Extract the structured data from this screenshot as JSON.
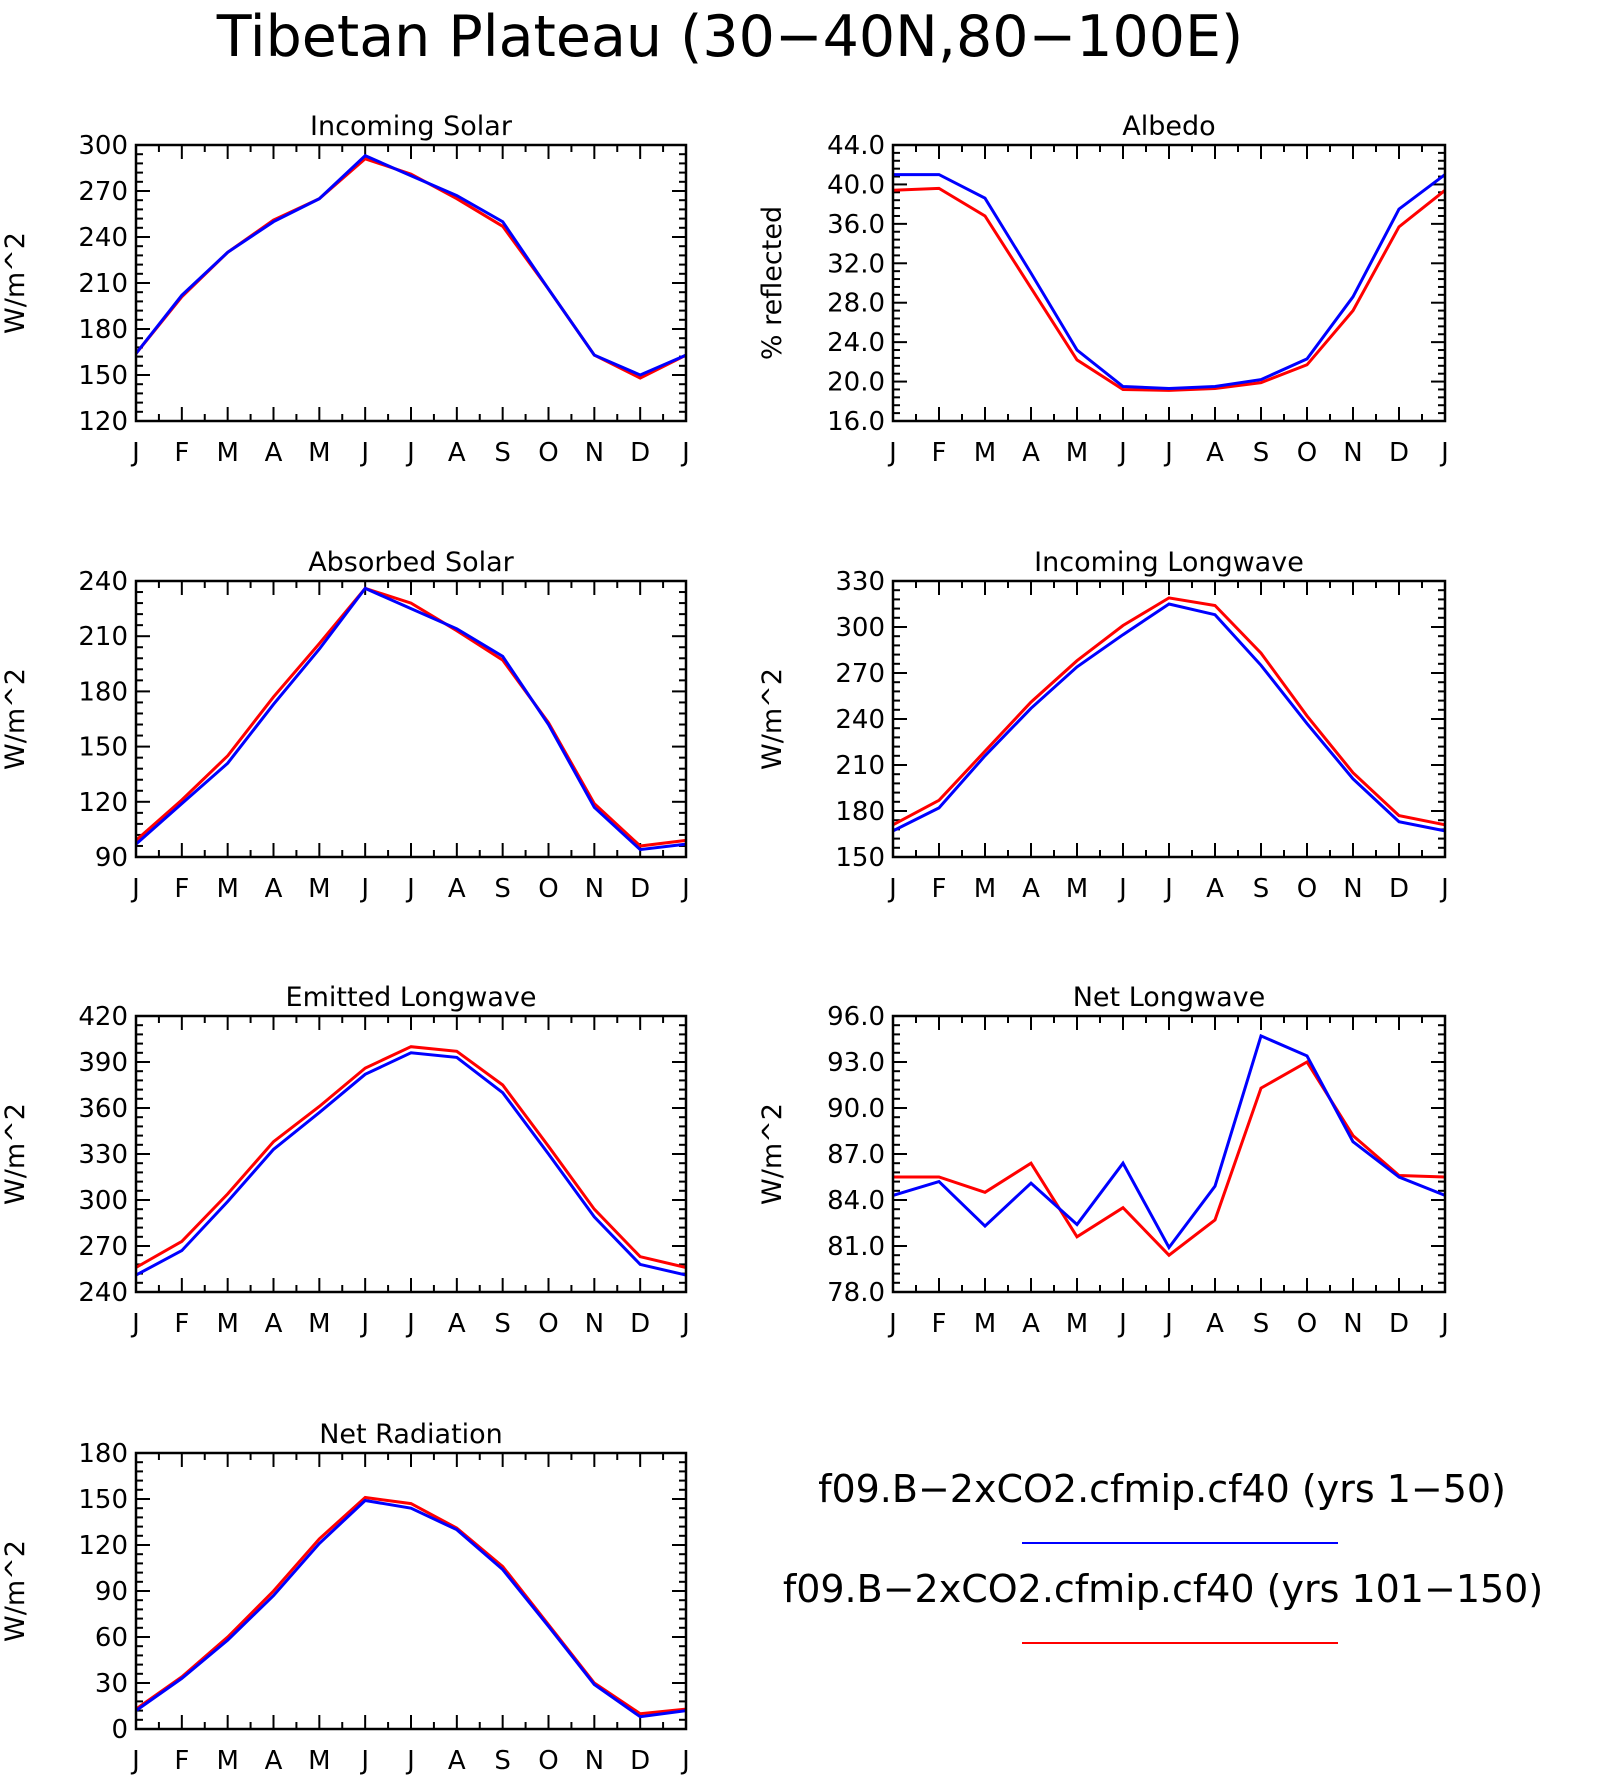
{
  "title": "Tibetan Plateau (30−40N,80−100E)",
  "legend": {
    "entries": [
      {
        "label": "f09.B−2xCO2.cfmip.cf40 (yrs 1−50)",
        "color": "#0000ff"
      },
      {
        "label": "f09.B−2xCO2.cfmip.cf40 (yrs 101−150)",
        "color": "#ff0000"
      }
    ]
  },
  "chart_data": [
    {
      "type": "line",
      "title": "Incoming Solar",
      "ylabel": "W/m^2",
      "ylim": [
        120,
        300
      ],
      "yticks": [
        120,
        150,
        180,
        210,
        240,
        270,
        300
      ],
      "ytick_labels": [
        "120",
        "150",
        "180",
        "210",
        "240",
        "270",
        "300"
      ],
      "categories": [
        "J",
        "F",
        "M",
        "A",
        "M",
        "J",
        "J",
        "A",
        "S",
        "O",
        "N",
        "D",
        "J"
      ],
      "series": [
        {
          "name": "f09.B−2xCO2.cfmip.cf40 (yrs 1−50)",
          "color": "#0000ff",
          "values": [
            164,
            202,
            230,
            250,
            265,
            293,
            280,
            267,
            250,
            206,
            163,
            150,
            163
          ]
        },
        {
          "name": "f09.B−2xCO2.cfmip.cf40 (yrs 101−150)",
          "color": "#ff0000",
          "values": [
            164,
            201,
            230,
            251,
            265,
            291,
            281,
            265,
            247,
            206,
            163,
            148,
            163
          ]
        }
      ]
    },
    {
      "type": "line",
      "title": "Albedo",
      "ylabel": "% reflected",
      "ylim": [
        16,
        44
      ],
      "yticks": [
        16,
        20,
        24,
        28,
        32,
        36,
        40,
        44
      ],
      "ytick_labels": [
        "16.0",
        "20.0",
        "24.0",
        "28.0",
        "32.0",
        "36.0",
        "40.0",
        "44.0"
      ],
      "categories": [
        "J",
        "F",
        "M",
        "A",
        "M",
        "J",
        "J",
        "A",
        "S",
        "O",
        "N",
        "D",
        "J"
      ],
      "series": [
        {
          "name": "f09.B−2xCO2.cfmip.cf40 (yrs 1−50)",
          "color": "#0000ff",
          "values": [
            41.0,
            41.0,
            38.6,
            31.0,
            23.2,
            19.5,
            19.3,
            19.5,
            20.2,
            22.3,
            28.6,
            37.5,
            41.0
          ]
        },
        {
          "name": "f09.B−2xCO2.cfmip.cf40 (yrs 101−150)",
          "color": "#ff0000",
          "values": [
            39.4,
            39.6,
            36.8,
            29.5,
            22.2,
            19.2,
            19.1,
            19.3,
            19.9,
            21.7,
            27.2,
            35.7,
            39.4
          ]
        }
      ]
    },
    {
      "type": "line",
      "title": "Absorbed Solar",
      "ylabel": "W/m^2",
      "ylim": [
        90,
        240
      ],
      "yticks": [
        90,
        120,
        150,
        180,
        210,
        240
      ],
      "ytick_labels": [
        "90",
        "120",
        "150",
        "180",
        "210",
        "240"
      ],
      "categories": [
        "J",
        "F",
        "M",
        "A",
        "M",
        "J",
        "J",
        "A",
        "S",
        "O",
        "N",
        "D",
        "J"
      ],
      "series": [
        {
          "name": "f09.B−2xCO2.cfmip.cf40 (yrs 1−50)",
          "color": "#0000ff",
          "values": [
            97,
            119,
            141,
            173,
            203,
            236,
            225,
            214,
            199,
            162,
            117,
            94,
            97
          ]
        },
        {
          "name": "f09.B−2xCO2.cfmip.cf40 (yrs 101−150)",
          "color": "#ff0000",
          "values": [
            99,
            121,
            145,
            177,
            206,
            236,
            228,
            213,
            197,
            163,
            119,
            96,
            99
          ]
        }
      ]
    },
    {
      "type": "line",
      "title": "Incoming Longwave",
      "ylabel": "W/m^2",
      "ylim": [
        150,
        330
      ],
      "yticks": [
        150,
        180,
        210,
        240,
        270,
        300,
        330
      ],
      "ytick_labels": [
        "150",
        "180",
        "210",
        "240",
        "270",
        "300",
        "330"
      ],
      "categories": [
        "J",
        "F",
        "M",
        "A",
        "M",
        "J",
        "J",
        "A",
        "S",
        "O",
        "N",
        "D",
        "J"
      ],
      "series": [
        {
          "name": "f09.B−2xCO2.cfmip.cf40 (yrs 1−50)",
          "color": "#0000ff",
          "values": [
            167,
            182,
            216,
            247,
            274,
            295,
            315,
            308,
            275,
            237,
            201,
            173,
            167
          ]
        },
        {
          "name": "f09.B−2xCO2.cfmip.cf40 (yrs 101−150)",
          "color": "#ff0000",
          "values": [
            171,
            187,
            219,
            251,
            278,
            301,
            319,
            314,
            283,
            242,
            205,
            177,
            171
          ]
        }
      ]
    },
    {
      "type": "line",
      "title": "Emitted Longwave",
      "ylabel": "W/m^2",
      "ylim": [
        240,
        420
      ],
      "yticks": [
        240,
        270,
        300,
        330,
        360,
        390,
        420
      ],
      "ytick_labels": [
        "240",
        "270",
        "300",
        "330",
        "360",
        "390",
        "420"
      ],
      "categories": [
        "J",
        "F",
        "M",
        "A",
        "M",
        "J",
        "J",
        "A",
        "S",
        "O",
        "N",
        "D",
        "J"
      ],
      "series": [
        {
          "name": "f09.B−2xCO2.cfmip.cf40 (yrs 1−50)",
          "color": "#0000ff",
          "values": [
            251,
            267,
            299,
            333,
            357,
            382,
            396,
            393,
            370,
            330,
            289,
            258,
            251
          ]
        },
        {
          "name": "f09.B−2xCO2.cfmip.cf40 (yrs 101−150)",
          "color": "#ff0000",
          "values": [
            256,
            273,
            304,
            338,
            361,
            386,
            400,
            397,
            375,
            335,
            294,
            263,
            256
          ]
        }
      ]
    },
    {
      "type": "line",
      "title": "Net Longwave",
      "ylabel": "W/m^2",
      "ylim": [
        78,
        96
      ],
      "yticks": [
        78,
        81,
        84,
        87,
        90,
        93,
        96
      ],
      "ytick_labels": [
        "78.0",
        "81.0",
        "84.0",
        "87.0",
        "90.0",
        "93.0",
        "96.0"
      ],
      "categories": [
        "J",
        "F",
        "M",
        "A",
        "M",
        "J",
        "J",
        "A",
        "S",
        "O",
        "N",
        "D",
        "J"
      ],
      "series": [
        {
          "name": "f09.B−2xCO2.cfmip.cf40 (yrs 1−50)",
          "color": "#0000ff",
          "values": [
            84.3,
            85.2,
            82.3,
            85.1,
            82.4,
            86.4,
            80.9,
            84.9,
            94.7,
            93.4,
            87.8,
            85.5,
            84.3
          ]
        },
        {
          "name": "f09.B−2xCO2.cfmip.cf40 (yrs 101−150)",
          "color": "#ff0000",
          "values": [
            85.5,
            85.5,
            84.5,
            86.4,
            81.6,
            83.5,
            80.4,
            82.7,
            91.3,
            93.0,
            88.2,
            85.6,
            85.5
          ]
        }
      ]
    },
    {
      "type": "line",
      "title": "Net Radiation",
      "ylabel": "W/m^2",
      "ylim": [
        0,
        180
      ],
      "yticks": [
        0,
        30,
        60,
        90,
        120,
        150,
        180
      ],
      "ytick_labels": [
        "0",
        "30",
        "60",
        "90",
        "120",
        "150",
        "180"
      ],
      "categories": [
        "J",
        "F",
        "M",
        "A",
        "M",
        "J",
        "J",
        "A",
        "S",
        "O",
        "N",
        "D",
        "J"
      ],
      "series": [
        {
          "name": "f09.B−2xCO2.cfmip.cf40 (yrs 1−50)",
          "color": "#0000ff",
          "values": [
            12,
            33,
            58,
            87,
            121,
            149,
            144,
            130,
            104,
            67,
            29,
            8,
            12
          ]
        },
        {
          "name": "f09.B−2xCO2.cfmip.cf40 (yrs 101−150)",
          "color": "#ff0000",
          "values": [
            13,
            34,
            60,
            90,
            124,
            151,
            147,
            131,
            106,
            68,
            30,
            10,
            13
          ]
        }
      ]
    }
  ]
}
